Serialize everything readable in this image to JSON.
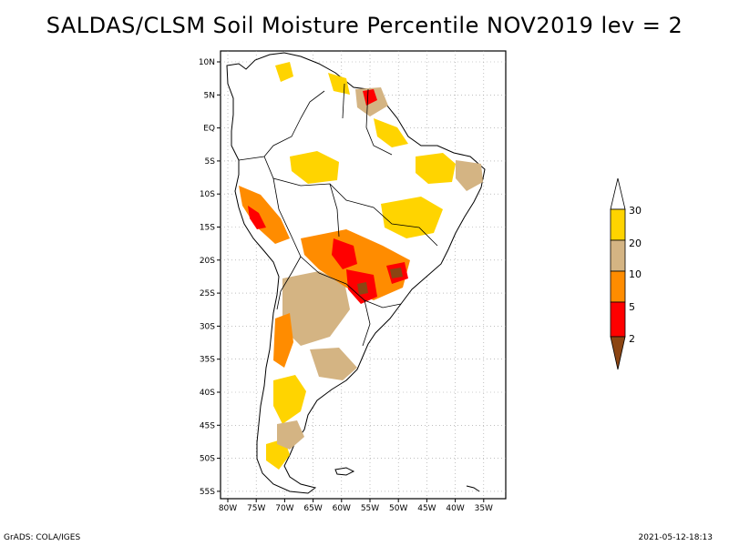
{
  "title": "SALDAS/CLSM Soil Moisture Percentile NOV2019 lev = 2",
  "footer": {
    "left": "GrADS: COLA/IGES",
    "right": "2021-05-12-18:13"
  },
  "map": {
    "region": "South America",
    "lat_labels": [
      "10N",
      "5N",
      "EQ",
      "5S",
      "10S",
      "15S",
      "20S",
      "25S",
      "30S",
      "35S",
      "40S",
      "45S",
      "50S",
      "55S"
    ],
    "lon_labels": [
      "80W",
      "75W",
      "70W",
      "65W",
      "60W",
      "55W",
      "50W",
      "45W",
      "40W",
      "35W"
    ]
  },
  "legend": {
    "labels": [
      "30",
      "20",
      "10",
      "5",
      "2"
    ],
    "colors": {
      "above_30": "#ffffff",
      "20_30": "#ffd400",
      "10_20": "#d4b483",
      "5_10": "#ff8c00",
      "2_5": "#ff0000",
      "below_2": "#8b4513"
    }
  }
}
